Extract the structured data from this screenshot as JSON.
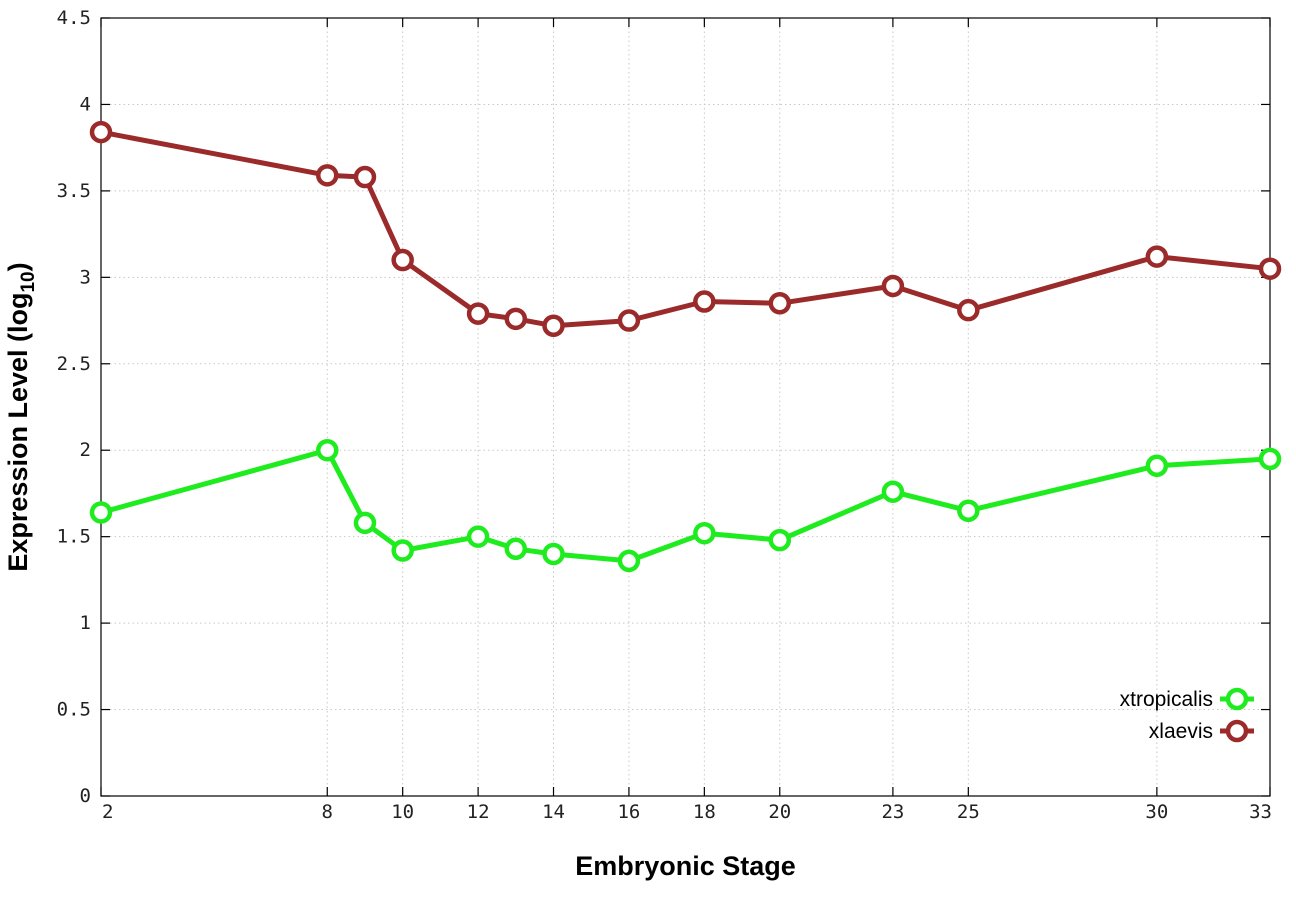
{
  "chart_data": {
    "type": "line",
    "xlabel": "Embryonic Stage",
    "ylabel_main": "Expression Level (log",
    "ylabel_sub": "10",
    "ylabel_close": ")",
    "ylim": [
      0,
      4.5
    ],
    "y_ticks": [
      0,
      0.5,
      1,
      1.5,
      2,
      2.5,
      3,
      3.5,
      4,
      4.5
    ],
    "y_tick_labels": [
      "0",
      "0.5",
      "1",
      "1.5",
      "2",
      "2.5",
      "3",
      "3.5",
      "4",
      "4.5"
    ],
    "x": [
      2,
      8,
      9,
      10,
      12,
      13,
      14,
      16,
      18,
      20,
      23,
      25,
      30,
      33
    ],
    "x_ticks": [
      2,
      8,
      10,
      12,
      14,
      16,
      18,
      20,
      23,
      25,
      30,
      33
    ],
    "x_tick_labels": [
      "2",
      "8",
      "10",
      "12",
      "14",
      "16",
      "18",
      "20",
      "23",
      "25",
      "30",
      "33"
    ],
    "grid": true,
    "legend_position": "bottom-right",
    "series": [
      {
        "name": "xtropicalis",
        "color": "#1eec1e",
        "marker": "circle",
        "values": [
          1.64,
          2.0,
          1.58,
          1.42,
          1.5,
          1.43,
          1.4,
          1.36,
          1.52,
          1.48,
          1.76,
          1.65,
          1.91,
          1.95
        ]
      },
      {
        "name": "xlaevis",
        "color": "#9b2a2a",
        "marker": "circle",
        "values": [
          3.84,
          3.59,
          3.58,
          3.1,
          2.79,
          2.76,
          2.72,
          2.75,
          2.86,
          2.85,
          2.95,
          2.81,
          3.12,
          3.05
        ]
      }
    ]
  }
}
